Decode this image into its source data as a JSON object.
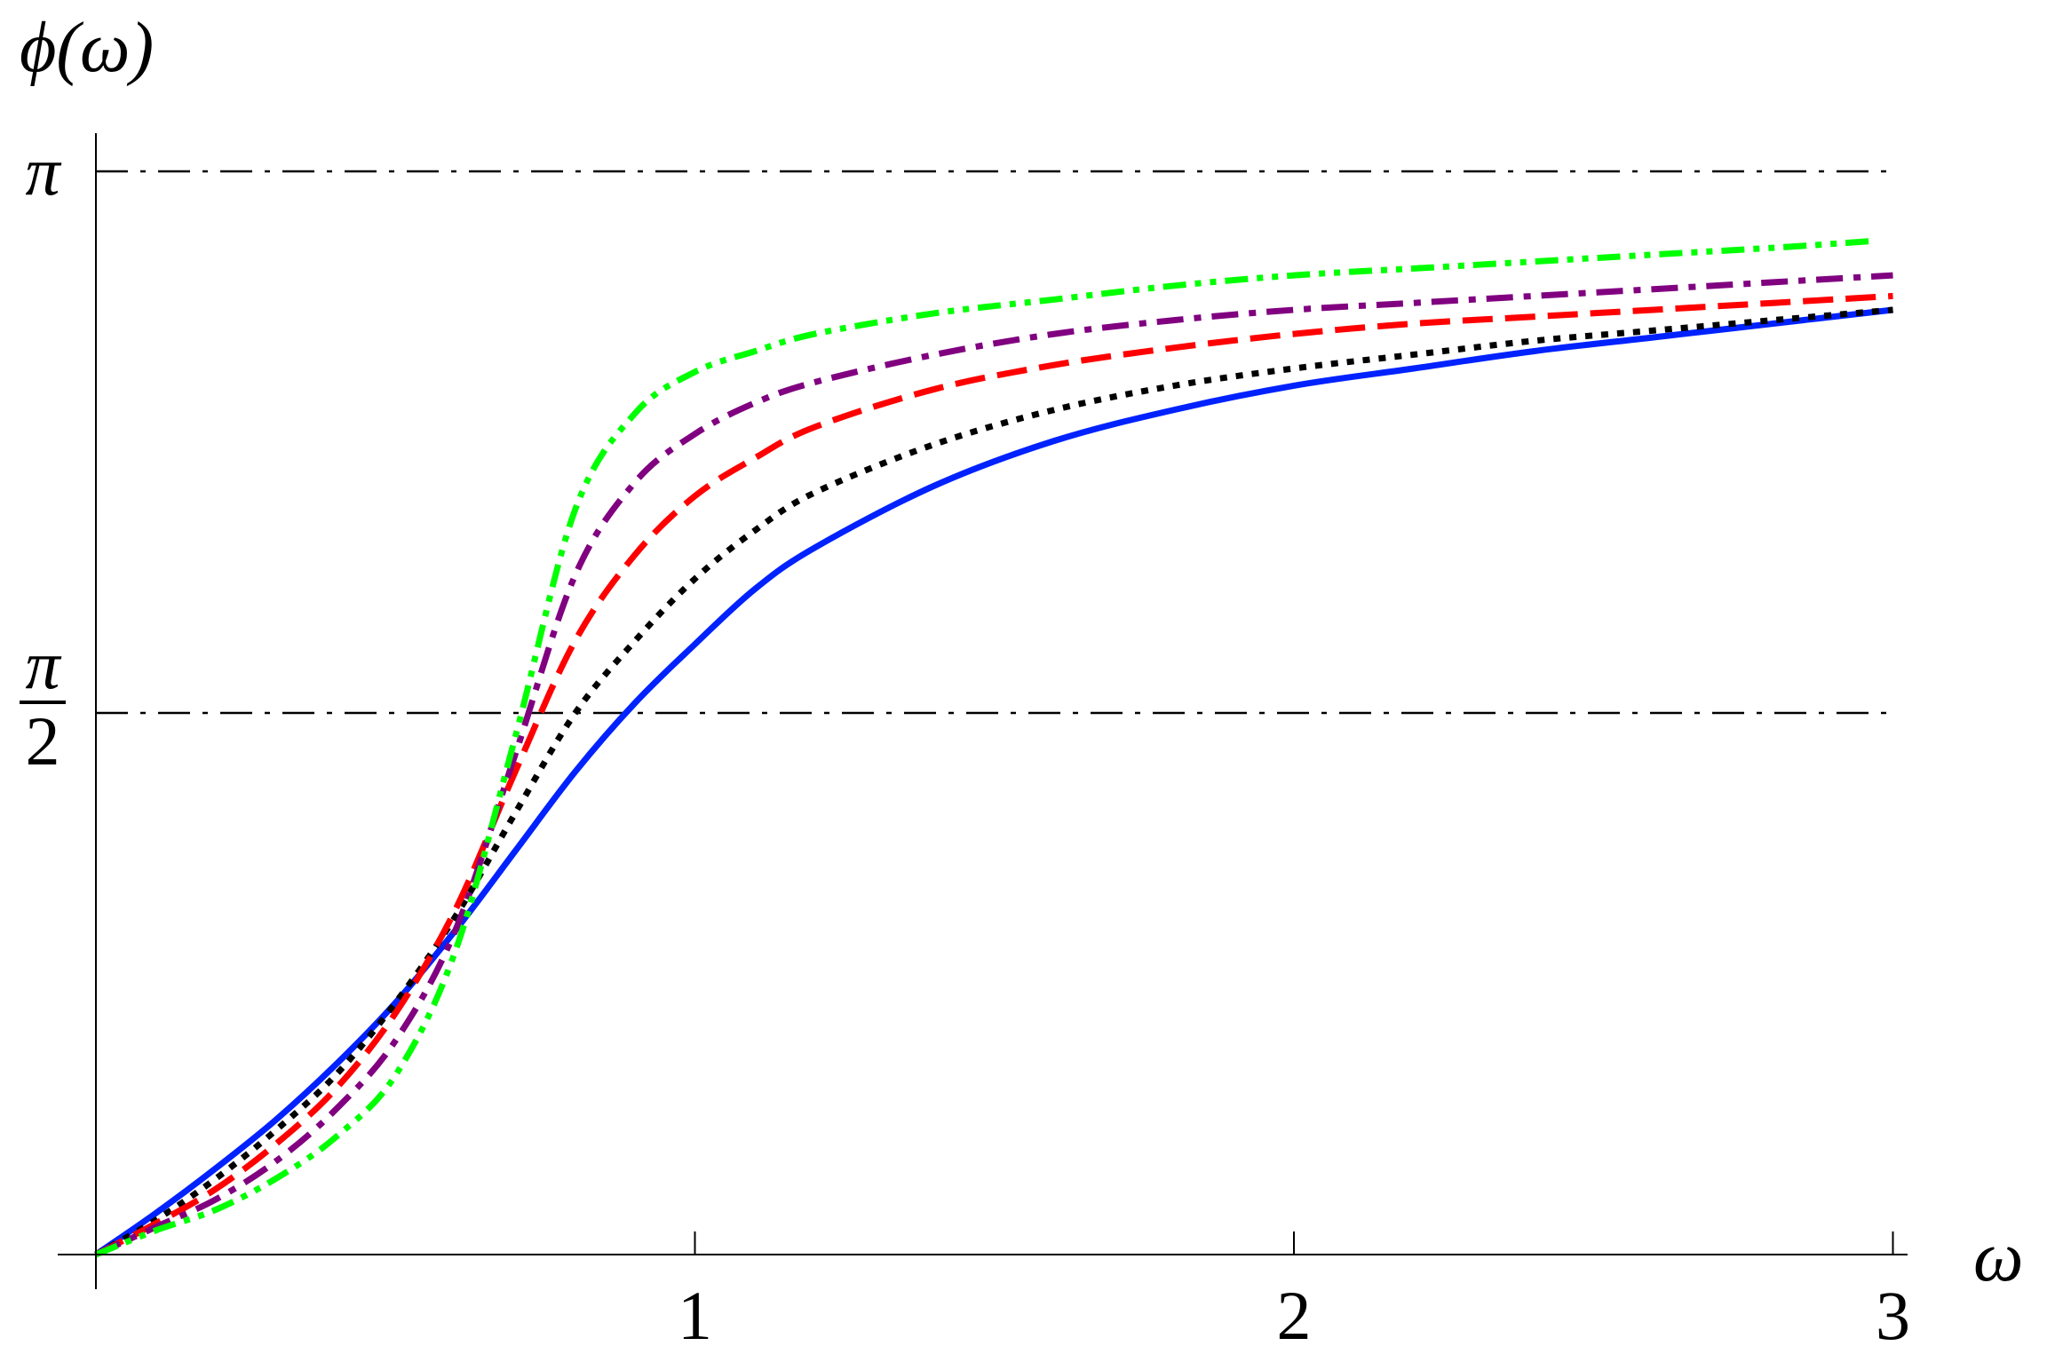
{
  "chart_data": {
    "type": "line",
    "title": "",
    "xlabel": "ω",
    "ylabel": "ϕ(ω)",
    "xlim": [
      0,
      3.05
    ],
    "ylim": [
      0,
      3.1416
    ],
    "x_ticks": [
      {
        "value": 1,
        "label": "1"
      },
      {
        "value": 2,
        "label": "2"
      },
      {
        "value": 3,
        "label": "3"
      }
    ],
    "y_ticks": [
      {
        "value": 1.5708,
        "label_num": "π",
        "label_den": "2"
      },
      {
        "value": 3.1416,
        "label": "π"
      }
    ],
    "reference_lines": [
      {
        "y": 1.5708,
        "style": "dash-dot",
        "color": "#000000"
      },
      {
        "y": 3.1416,
        "style": "dash-dot",
        "color": "#000000"
      }
    ],
    "grid": false,
    "legend": "none",
    "series": [
      {
        "color": "#0022ff",
        "style": "solid",
        "x": [
          0,
          0.1,
          0.2,
          0.3,
          0.4,
          0.5,
          0.6,
          0.7,
          0.8,
          0.9,
          1.0,
          1.1,
          1.2,
          1.4,
          1.6,
          1.8,
          2.0,
          2.2,
          2.4,
          2.6,
          2.8,
          3.0
        ],
        "y": [
          0,
          0.12,
          0.25,
          0.39,
          0.55,
          0.73,
          0.94,
          1.17,
          1.4,
          1.6,
          1.77,
          1.93,
          2.05,
          2.23,
          2.36,
          2.45,
          2.52,
          2.57,
          2.62,
          2.66,
          2.7,
          2.74
        ]
      },
      {
        "color": "#000000",
        "style": "dotted",
        "x": [
          0,
          0.1,
          0.2,
          0.3,
          0.4,
          0.5,
          0.6,
          0.7,
          0.8,
          0.9,
          1.0,
          1.1,
          1.2,
          1.4,
          1.6,
          1.8,
          2.0,
          2.2,
          2.4,
          2.6,
          2.8,
          3.0
        ],
        "y": [
          0,
          0.1,
          0.22,
          0.36,
          0.52,
          0.73,
          0.98,
          1.28,
          1.57,
          1.78,
          1.96,
          2.1,
          2.21,
          2.35,
          2.45,
          2.52,
          2.57,
          2.61,
          2.65,
          2.68,
          2.71,
          2.74
        ]
      },
      {
        "color": "#ff0000",
        "style": "dashed",
        "x": [
          0,
          0.1,
          0.2,
          0.3,
          0.4,
          0.5,
          0.6,
          0.7,
          0.8,
          0.9,
          1.0,
          1.1,
          1.2,
          1.4,
          1.6,
          1.8,
          2.0,
          2.2,
          2.4,
          2.6,
          2.8,
          3.0
        ],
        "y": [
          0,
          0.09,
          0.19,
          0.32,
          0.48,
          0.7,
          1.0,
          1.4,
          1.78,
          2.03,
          2.2,
          2.31,
          2.4,
          2.51,
          2.58,
          2.63,
          2.67,
          2.7,
          2.72,
          2.74,
          2.76,
          2.78
        ]
      },
      {
        "color": "#800080",
        "style": "dash-dot",
        "x": [
          0,
          0.1,
          0.2,
          0.3,
          0.4,
          0.5,
          0.6,
          0.7,
          0.8,
          0.9,
          1.0,
          1.1,
          1.2,
          1.4,
          1.6,
          1.8,
          2.0,
          2.2,
          2.4,
          2.6,
          2.8,
          3.0
        ],
        "y": [
          0,
          0.08,
          0.16,
          0.27,
          0.42,
          0.62,
          0.94,
          1.45,
          1.97,
          2.24,
          2.38,
          2.47,
          2.53,
          2.61,
          2.67,
          2.71,
          2.74,
          2.76,
          2.78,
          2.8,
          2.82,
          2.84
        ]
      },
      {
        "color": "#00ff00",
        "style": "dash-dot-dot",
        "x": [
          0,
          0.1,
          0.2,
          0.3,
          0.4,
          0.5,
          0.6,
          0.7,
          0.8,
          0.9,
          1.0,
          1.1,
          1.2,
          1.4,
          1.6,
          1.8,
          2.0,
          2.2,
          2.4,
          2.6,
          2.8,
          2.97
        ],
        "y": [
          0,
          0.07,
          0.13,
          0.22,
          0.34,
          0.52,
          0.88,
          1.5,
          2.16,
          2.44,
          2.56,
          2.62,
          2.67,
          2.73,
          2.77,
          2.81,
          2.84,
          2.86,
          2.88,
          2.9,
          2.92,
          2.94
        ]
      }
    ]
  }
}
